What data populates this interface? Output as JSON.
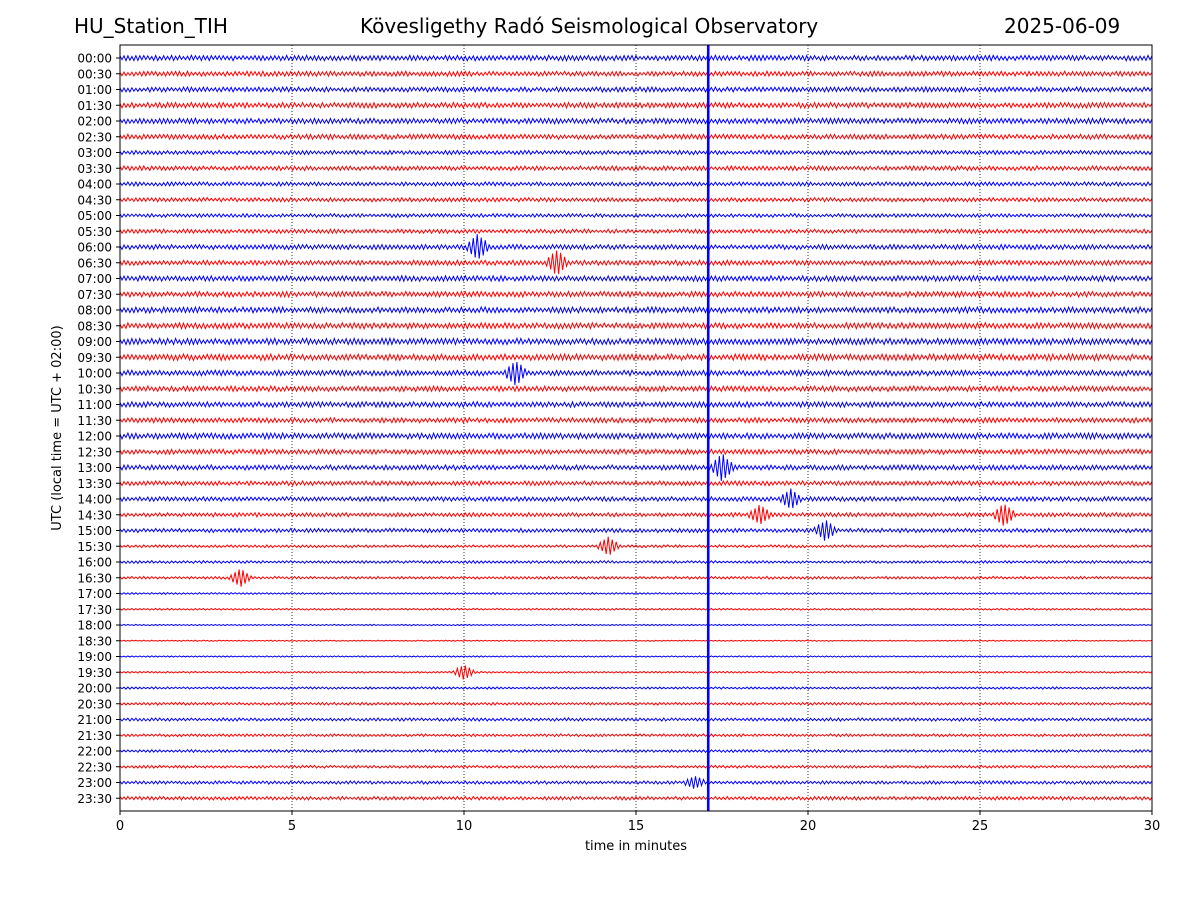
{
  "header": {
    "station": "HU_Station_TIH",
    "observatory": "Kövesligethy Radó Seismological Observatory",
    "date": "2025-06-09"
  },
  "colors": {
    "trace_a": "#0000ff",
    "trace_b": "#ff0000",
    "axis": "#000000",
    "grid": "#000000"
  },
  "chart_data": {
    "type": "line",
    "xlabel": "time in minutes",
    "ylabel": "UTC (local time = UTC + 02:00)",
    "xlim": [
      0,
      30
    ],
    "x_ticks": [
      0,
      5,
      10,
      15,
      20,
      25,
      30
    ],
    "grid": "vertical dotted",
    "row_labels": [
      "00:00",
      "00:30",
      "01:00",
      "01:30",
      "02:00",
      "02:30",
      "03:00",
      "03:30",
      "04:00",
      "04:30",
      "05:00",
      "05:30",
      "06:00",
      "06:30",
      "07:00",
      "07:30",
      "08:00",
      "08:30",
      "09:00",
      "09:30",
      "10:00",
      "10:30",
      "11:00",
      "11:30",
      "12:00",
      "12:30",
      "13:00",
      "13:30",
      "14:00",
      "14:30",
      "15:00",
      "15:30",
      "16:00",
      "16:30",
      "17:00",
      "17:30",
      "18:00",
      "18:30",
      "19:00",
      "19:30",
      "20:00",
      "20:30",
      "21:00",
      "21:30",
      "22:00",
      "22:30",
      "23:00",
      "23:30"
    ],
    "row_noise_level": [
      0.6,
      0.55,
      0.55,
      0.6,
      0.6,
      0.55,
      0.45,
      0.5,
      0.45,
      0.45,
      0.4,
      0.45,
      0.55,
      0.55,
      0.6,
      0.6,
      0.65,
      0.65,
      0.7,
      0.7,
      0.6,
      0.6,
      0.6,
      0.55,
      0.65,
      0.55,
      0.55,
      0.5,
      0.5,
      0.45,
      0.45,
      0.3,
      0.3,
      0.3,
      0.2,
      0.2,
      0.15,
      0.12,
      0.15,
      0.2,
      0.25,
      0.3,
      0.35,
      0.3,
      0.3,
      0.3,
      0.35,
      0.4
    ],
    "events": [
      {
        "row": 12,
        "minute": 10.4,
        "amplitude": 1.6
      },
      {
        "row": 13,
        "minute": 12.7,
        "amplitude": 1.6
      },
      {
        "row": 20,
        "minute": 11.5,
        "amplitude": 1.5
      },
      {
        "row": 26,
        "minute": 17.5,
        "amplitude": 1.8
      },
      {
        "row": 28,
        "minute": 19.5,
        "amplitude": 1.2
      },
      {
        "row": 29,
        "minute": 18.6,
        "amplitude": 1.2
      },
      {
        "row": 29,
        "minute": 25.7,
        "amplitude": 1.4
      },
      {
        "row": 30,
        "minute": 20.5,
        "amplitude": 1.3
      },
      {
        "row": 31,
        "minute": 14.2,
        "amplitude": 1.2
      },
      {
        "row": 33,
        "minute": 3.5,
        "amplitude": 1.2
      },
      {
        "row": 39,
        "minute": 10.0,
        "amplitude": 1.0
      },
      {
        "row": 46,
        "minute": 16.7,
        "amplitude": 0.8
      }
    ],
    "continuous_signal_minute": 17.1
  }
}
